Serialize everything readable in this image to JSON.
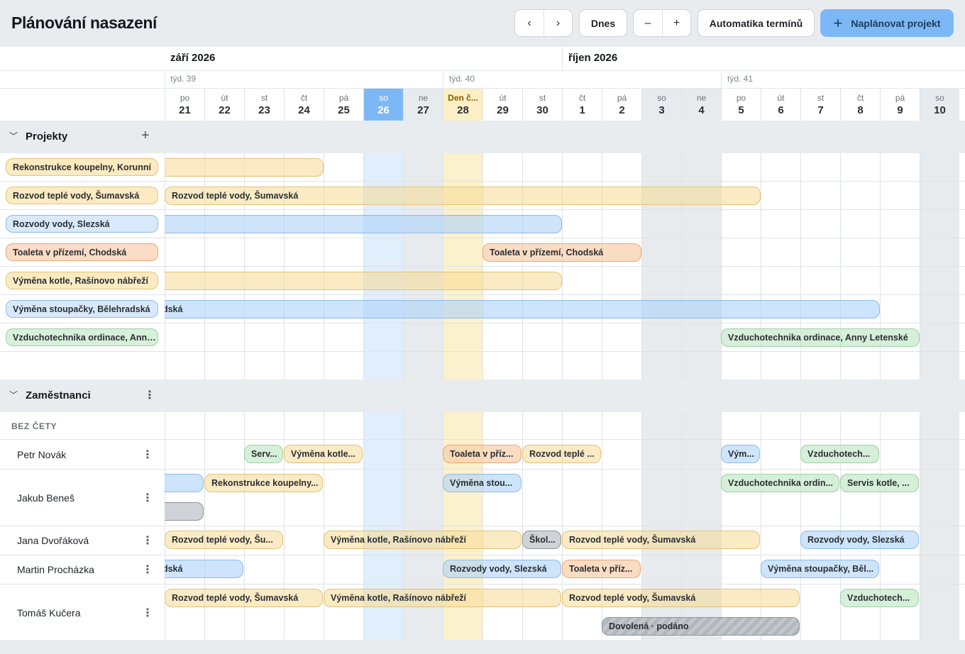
{
  "header": {
    "title": "Plánování nasazení",
    "today_label": "Dnes",
    "zoom_out": "–",
    "zoom_in": "+",
    "auto_label": "Automatika termínů",
    "plan_label": "Naplánovat projekt"
  },
  "calendar": {
    "months": [
      "září 2026",
      "říjen 2026"
    ],
    "weeks": [
      "týd. 39",
      "týd. 40",
      "týd. 41"
    ],
    "days": [
      {
        "n": "po",
        "d": "21"
      },
      {
        "n": "út",
        "d": "22"
      },
      {
        "n": "st",
        "d": "23"
      },
      {
        "n": "čt",
        "d": "24"
      },
      {
        "n": "pá",
        "d": "25"
      },
      {
        "n": "so",
        "d": "26"
      },
      {
        "n": "ne",
        "d": "27"
      },
      {
        "n": "Den č...",
        "d": "28"
      },
      {
        "n": "út",
        "d": "29"
      },
      {
        "n": "st",
        "d": "30"
      },
      {
        "n": "čt",
        "d": "1"
      },
      {
        "n": "pá",
        "d": "2"
      },
      {
        "n": "so",
        "d": "3"
      },
      {
        "n": "ne",
        "d": "4"
      },
      {
        "n": "po",
        "d": "5"
      },
      {
        "n": "út",
        "d": "6"
      },
      {
        "n": "st",
        "d": "7"
      },
      {
        "n": "čt",
        "d": "8"
      },
      {
        "n": "pá",
        "d": "9"
      },
      {
        "n": "so",
        "d": "10"
      }
    ]
  },
  "projects_section": {
    "title": "Projekty",
    "add": "+",
    "labels": [
      "Rekonstrukce koupelny, Korunní",
      "Rozvod teplé vody, Šumavská",
      "Rozvody vody, Slezská",
      "Toaleta v přízemí, Chodská",
      "Výměna kotle, Rašínovo nábřeží",
      "Výměna stoupačky, Bělehradská",
      "Vzduchotechnika ordinace, Anny Letenské"
    ],
    "bars": [
      {
        "text": ""
      },
      {
        "text": "Rozvod teplé vody, Šumavská"
      },
      {
        "text": ""
      },
      {
        "text": "Toaleta v přízemí, Chodská"
      },
      {
        "text": ""
      },
      {
        "text": "adská"
      },
      {
        "text": "Vzduchotechnika ordinace, Anny Letenské"
      }
    ]
  },
  "employees_section": {
    "title": "Zaměstnanci",
    "menu": "⋮",
    "team": "BEZ ČETY",
    "employees": [
      {
        "name": "Petr Novák",
        "bars": [
          "Serv...",
          "Výměna kotle...",
          "Toaleta v příz...",
          "Rozvod teplé ...",
          "Vým...",
          "Vzduchotech..."
        ]
      },
      {
        "name": "Jakub Beneš",
        "bars": [
          "",
          "Rekonstrukce koupelny...",
          "Výměna stou...",
          "Vzduchotechnika ordin...",
          "Servis kotle, ...",
          ""
        ]
      },
      {
        "name": "Jana Dvořáková",
        "bars": [
          "Rozvod teplé vody, Šu...",
          "Výměna kotle, Rašínovo nábřeží",
          "Škol...",
          "Rozvod teplé vody, Šumavská",
          "Rozvody vody, Slezská"
        ]
      },
      {
        "name": "Martin Procházka",
        "bars": [
          "adská",
          "Rozvody vody, Slezská",
          "Toaleta v příz...",
          "Výměna stoupačky, Běl..."
        ]
      },
      {
        "name": "Tomáš Kučera",
        "bars": [
          "Rozvod teplé vody, Šumavská",
          "Výměna kotle, Rašínovo nábřeží",
          "Rozvod teplé vody, Šumavská",
          "Vzduchotech...",
          "Dovolená · podáno"
        ]
      }
    ]
  }
}
